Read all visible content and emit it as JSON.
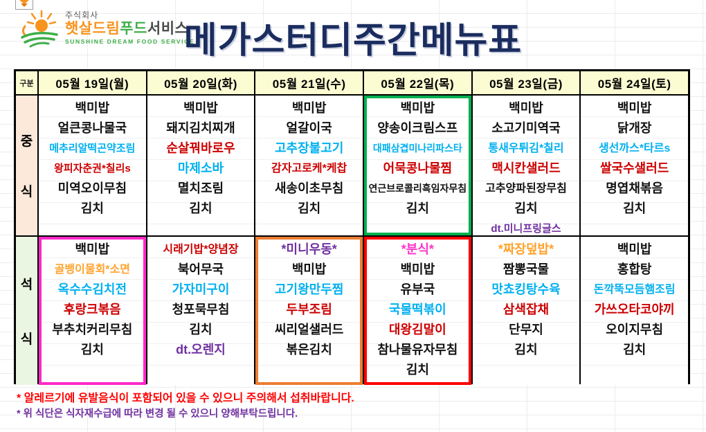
{
  "page": {
    "title": "메가스터디주간메뉴표",
    "title_color": "#1B2C5E"
  },
  "logo": {
    "company_prefix": "주식회사",
    "name_parts": [
      {
        "text": "햇살드림",
        "color": "#F7941D"
      },
      {
        "text": "푸드",
        "color": "#3FAE49"
      },
      {
        "text": "서비스",
        "color": "#4A4A4A"
      }
    ],
    "subtitle": "SUNSHINE DREAM FOOD SERVICE"
  },
  "colors": {
    "black": "#111111",
    "cyan": "#00B0F0",
    "red": "#CC0000",
    "orange": "#FFA22B",
    "purple": "#7030A0",
    "magenta": "#FF33CC"
  },
  "table": {
    "corner_label": "구분",
    "row_labels": {
      "lunch": "중식",
      "dinner": "석식"
    },
    "day_headers": [
      "05월 19일(월)",
      "05월 20일(화)",
      "05월 21일(수)",
      "05월 22일(목)",
      "05월 23일(금)",
      "05월 24일(토)"
    ],
    "highlights": {
      "lunch": [
        null,
        null,
        null,
        "#00B050",
        null,
        null
      ],
      "dinner": [
        "#FF29C8",
        null,
        "#ED7D31",
        "#FF0000",
        null,
        null
      ]
    },
    "lunch": [
      [
        {
          "text": "백미밥",
          "color": "black"
        },
        {
          "text": "얼큰콩나물국",
          "color": "black"
        },
        {
          "text": "메추리알떡곤약조림",
          "color": "cyan"
        },
        {
          "text": "왕피자춘권*칠리s",
          "color": "red"
        },
        {
          "text": "미역오이무침",
          "color": "black"
        },
        {
          "text": "김치",
          "color": "black"
        }
      ],
      [
        {
          "text": "백미밥",
          "color": "black"
        },
        {
          "text": "돼지김치찌개",
          "color": "black"
        },
        {
          "text": "순살꿔바로우",
          "color": "red"
        },
        {
          "text": "마제소바",
          "color": "cyan"
        },
        {
          "text": "멸치조림",
          "color": "black"
        },
        {
          "text": "김치",
          "color": "black"
        }
      ],
      [
        {
          "text": "백미밥",
          "color": "black"
        },
        {
          "text": "얼갈이국",
          "color": "black"
        },
        {
          "text": "고추장불고기",
          "color": "cyan"
        },
        {
          "text": "감자고로케*케찹",
          "color": "red"
        },
        {
          "text": "새송이초무침",
          "color": "black"
        },
        {
          "text": "김치",
          "color": "black"
        }
      ],
      [
        {
          "text": "백미밥",
          "color": "black"
        },
        {
          "text": "양송이크림스프",
          "color": "black"
        },
        {
          "text": "대패삼겹미나리파스타",
          "color": "cyan"
        },
        {
          "text": "어묵콩나물찜",
          "color": "red"
        },
        {
          "text": "연근브로콜리흑임자무침",
          "color": "black"
        },
        {
          "text": "김치",
          "color": "black"
        }
      ],
      [
        {
          "text": "백미밥",
          "color": "black"
        },
        {
          "text": "소고기미역국",
          "color": "black"
        },
        {
          "text": "통새우튀김*칠리",
          "color": "cyan"
        },
        {
          "text": "맥시칸샐러드",
          "color": "red"
        },
        {
          "text": "고추양파된장무침",
          "color": "black"
        },
        {
          "text": "김치",
          "color": "black"
        },
        {
          "text": "dt.미니프링글스",
          "color": "purple"
        }
      ],
      [
        {
          "text": "백미밥",
          "color": "black"
        },
        {
          "text": "닭개장",
          "color": "black"
        },
        {
          "text": "생선까스*타르s",
          "color": "cyan"
        },
        {
          "text": "쌀국수샐러드",
          "color": "red"
        },
        {
          "text": "명엽채볶음",
          "color": "black"
        },
        {
          "text": "김치",
          "color": "black"
        }
      ]
    ],
    "dinner": [
      [
        {
          "text": "백미밥",
          "color": "black"
        },
        {
          "text": "골뱅이물회*소면",
          "color": "orange"
        },
        {
          "text": "옥수수김치전",
          "color": "cyan"
        },
        {
          "text": "후랑크볶음",
          "color": "red"
        },
        {
          "text": "부추치커리무침",
          "color": "black"
        },
        {
          "text": "김치",
          "color": "black"
        }
      ],
      [
        {
          "text": "시래기밥*양념장",
          "color": "red"
        },
        {
          "text": "북어무국",
          "color": "black"
        },
        {
          "text": "가자미구이",
          "color": "cyan"
        },
        {
          "text": "청포묵무침",
          "color": "black"
        },
        {
          "text": "김치",
          "color": "black"
        },
        {
          "text": "dt.오렌지",
          "color": "purple"
        }
      ],
      [
        {
          "text": "*미니우동*",
          "color": "purple"
        },
        {
          "text": "백미밥",
          "color": "black"
        },
        {
          "text": "고기왕만두찜",
          "color": "cyan"
        },
        {
          "text": "두부조림",
          "color": "red"
        },
        {
          "text": "씨리얼샐러드",
          "color": "black"
        },
        {
          "text": "볶은김치",
          "color": "black"
        }
      ],
      [
        {
          "text": "*분식*",
          "color": "magenta"
        },
        {
          "text": "백미밥",
          "color": "black"
        },
        {
          "text": "유부국",
          "color": "black"
        },
        {
          "text": "국물떡볶이",
          "color": "cyan"
        },
        {
          "text": "대왕김말이",
          "color": "red"
        },
        {
          "text": "참나물유자무침",
          "color": "black"
        },
        {
          "text": "김치",
          "color": "black"
        }
      ],
      [
        {
          "text": "*짜장덮밥*",
          "color": "orange"
        },
        {
          "text": "짬뽕국물",
          "color": "black"
        },
        {
          "text": "맛쵸킹탕수육",
          "color": "cyan"
        },
        {
          "text": "삼색잡채",
          "color": "red"
        },
        {
          "text": "단무지",
          "color": "black"
        },
        {
          "text": "김치",
          "color": "black"
        }
      ],
      [
        {
          "text": "백미밥",
          "color": "black"
        },
        {
          "text": "홍합탕",
          "color": "black"
        },
        {
          "text": "돈깍뚝모듬햄조림",
          "color": "cyan"
        },
        {
          "text": "가쓰오타코야끼",
          "color": "red"
        },
        {
          "text": "오이지무침",
          "color": "black"
        },
        {
          "text": "김치",
          "color": "black"
        }
      ]
    ]
  },
  "notes": [
    {
      "text": "* 알레르기에 유발음식이 포함되어 있을 수 있으니 주의해서 섭취바랍니다.",
      "color": "#FF0000"
    },
    {
      "text": "* 위 식단은 식자재수급에 따라 변경 될 수 있으니 양해부탁드립니다.",
      "color": "#7030A0"
    }
  ]
}
